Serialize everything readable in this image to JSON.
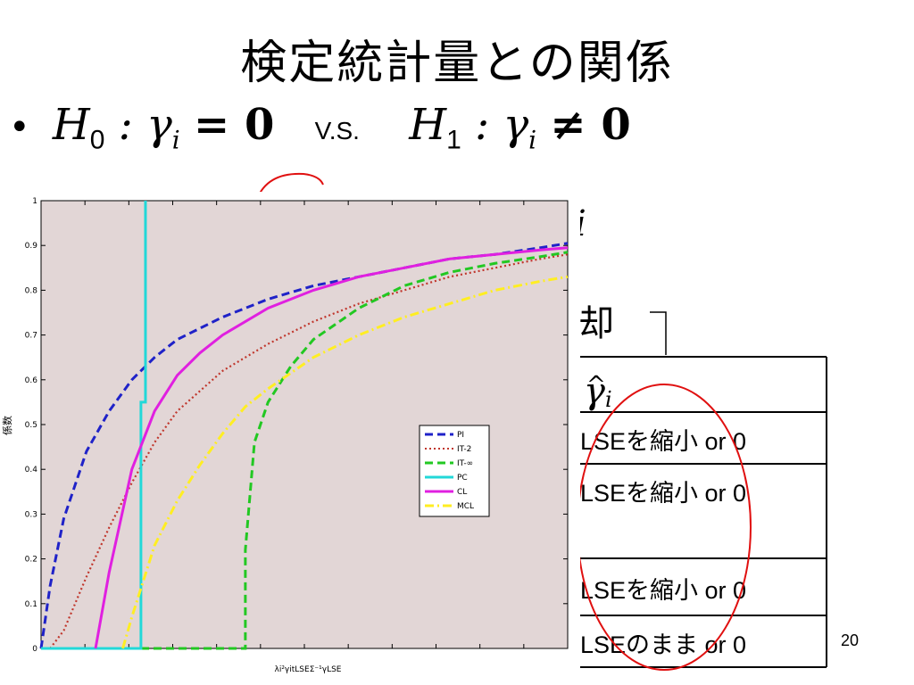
{
  "slide": {
    "title": "検定統計量との関係",
    "bullet_symbol": "•",
    "h0_label": "H",
    "h0_sub": "0",
    "h0_rhs": ": γ",
    "h0_idx": "i",
    "h0_eq": "= 0",
    "vs_text": "V.S.",
    "h1_label": "H",
    "h1_sub": "1",
    "h1_rhs": ": γ",
    "h1_idx": "i",
    "h1_eq": "≠ 0",
    "partial_formula_suffix": "i",
    "partial_label": "却",
    "page_number": "20"
  },
  "table": {
    "header_hat": "^",
    "header_gamma": "γ",
    "header_idx": "i",
    "rows": [
      "LSEを縮小 or 0",
      "LSEを縮小 or 0",
      "LSEを縮小 or 0",
      "LSEのまま or 0"
    ]
  },
  "chart_data": {
    "type": "line",
    "xlabel": "λi²γitLSEΣ⁻¹γLSE",
    "ylabel": "係数",
    "ylim": [
      0,
      1
    ],
    "yticks": [
      "0",
      "0.1",
      "0.2",
      "0.3",
      "0.4",
      "0.5",
      "0.6",
      "0.7",
      "0.8",
      "0.9",
      "1"
    ],
    "background": "#e2d6d6",
    "legend_position": "right",
    "series": [
      {
        "name": "PI",
        "color": "#1f22c8",
        "dash": "dash",
        "x": [
          0.0,
          0.2,
          0.5,
          1.0,
          1.5,
          2.0,
          2.5,
          3.0,
          4.0,
          5.0,
          6.0,
          7.0,
          8.0,
          9.0,
          10.0,
          11.0,
          11.6
        ],
        "y": [
          0.0,
          0.14,
          0.29,
          0.44,
          0.53,
          0.6,
          0.65,
          0.69,
          0.74,
          0.78,
          0.81,
          0.83,
          0.85,
          0.87,
          0.88,
          0.895,
          0.905
        ]
      },
      {
        "name": "IT-2",
        "color": "#c0362c",
        "dash": "dot",
        "x": [
          0.2,
          0.5,
          1.0,
          1.5,
          2.0,
          2.5,
          3.0,
          4.0,
          5.0,
          6.0,
          7.0,
          8.0,
          9.0,
          10.0,
          11.0,
          11.6
        ],
        "y": [
          0.0,
          0.04,
          0.16,
          0.27,
          0.37,
          0.46,
          0.53,
          0.62,
          0.68,
          0.73,
          0.77,
          0.8,
          0.83,
          0.85,
          0.87,
          0.88
        ]
      },
      {
        "name": "IT-∞",
        "color": "#22c822",
        "dash": "dash",
        "x": [
          0.0,
          1.0,
          2.0,
          3.0,
          4.0,
          4.5,
          4.5,
          4.7,
          5.0,
          5.5,
          6.0,
          7.0,
          8.0,
          9.0,
          10.0,
          11.0,
          11.6
        ],
        "y": [
          0,
          0,
          0,
          0,
          0,
          0,
          0.22,
          0.46,
          0.55,
          0.63,
          0.69,
          0.76,
          0.81,
          0.84,
          0.86,
          0.875,
          0.885
        ]
      },
      {
        "name": "PC",
        "color": "#22d8d8",
        "dash": "solid",
        "x": [
          0.0,
          2.2,
          2.2,
          2.3,
          2.3
        ],
        "y": [
          0,
          0,
          0.55,
          0.55,
          1.0
        ]
      },
      {
        "name": "CL",
        "color": "#e020e0",
        "dash": "solid",
        "x": [
          1.2,
          1.5,
          2.0,
          2.5,
          3.0,
          3.5,
          4.0,
          5.0,
          6.0,
          7.0,
          8.0,
          9.0,
          10.0,
          11.0,
          11.6
        ],
        "y": [
          0.0,
          0.17,
          0.4,
          0.53,
          0.61,
          0.66,
          0.7,
          0.76,
          0.8,
          0.83,
          0.85,
          0.87,
          0.88,
          0.89,
          0.895
        ]
      },
      {
        "name": "MCL",
        "color": "#ffee22",
        "dash": "dashdot",
        "x": [
          1.8,
          2.0,
          2.5,
          3.0,
          3.5,
          4.0,
          4.5,
          5.0,
          6.0,
          7.0,
          8.0,
          9.0,
          10.0,
          11.0,
          11.6
        ],
        "y": [
          0.0,
          0.07,
          0.23,
          0.33,
          0.41,
          0.48,
          0.54,
          0.58,
          0.65,
          0.7,
          0.74,
          0.77,
          0.8,
          0.82,
          0.83
        ]
      }
    ]
  }
}
